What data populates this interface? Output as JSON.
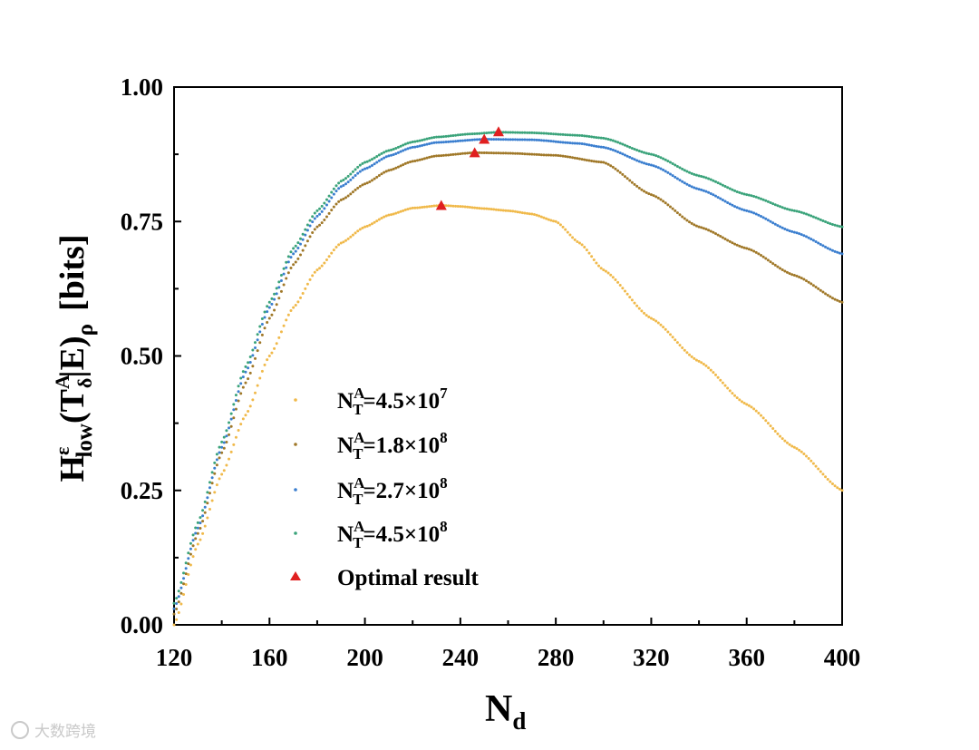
{
  "chart_data": {
    "type": "scatter",
    "title": "",
    "xlabel": {
      "base": "N",
      "sub": "d"
    },
    "ylabel": {
      "pre": "H",
      "sup1": "ε",
      "sub1": "low",
      "mid1": "(T",
      "sup2": "A",
      "sub2": "δ",
      "mid2": "|E)",
      "sub3": "ρ",
      "post": "[bits]"
    },
    "xlim": [
      120,
      400
    ],
    "ylim": [
      0,
      1
    ],
    "x_ticks": [
      "120",
      "160",
      "200",
      "240",
      "280",
      "320",
      "360",
      "400"
    ],
    "y_ticks": [
      "0.00",
      "0.25",
      "0.50",
      "0.75",
      "1.00"
    ],
    "legend_position": "lower-left",
    "series": [
      {
        "name": "N_T^A=4.5×10^7",
        "label_parts": {
          "base": "N",
          "sup": "A",
          "sub": "T",
          "value": "=4.5×10",
          "exp": "7"
        },
        "color": "#f0b94a",
        "points": [
          [
            120,
            0.0
          ],
          [
            130,
            0.15
          ],
          [
            140,
            0.28
          ],
          [
            150,
            0.39
          ],
          [
            160,
            0.5
          ],
          [
            170,
            0.59
          ],
          [
            180,
            0.66
          ],
          [
            190,
            0.71
          ],
          [
            200,
            0.74
          ],
          [
            210,
            0.762
          ],
          [
            220,
            0.775
          ],
          [
            232,
            0.78
          ],
          [
            240,
            0.778
          ],
          [
            250,
            0.774
          ],
          [
            260,
            0.77
          ],
          [
            270,
            0.764
          ],
          [
            280,
            0.75
          ],
          [
            290,
            0.71
          ],
          [
            300,
            0.66
          ],
          [
            320,
            0.57
          ],
          [
            340,
            0.49
          ],
          [
            360,
            0.41
          ],
          [
            380,
            0.33
          ],
          [
            400,
            0.25
          ]
        ]
      },
      {
        "name": "N_T^A=1.8×10^8",
        "label_parts": {
          "base": "N",
          "sup": "A",
          "sub": "T",
          "value": "=1.8×10",
          "exp": "8"
        },
        "color": "#a07828",
        "points": [
          [
            120,
            0.02
          ],
          [
            130,
            0.17
          ],
          [
            140,
            0.32
          ],
          [
            150,
            0.45
          ],
          [
            160,
            0.57
          ],
          [
            170,
            0.67
          ],
          [
            180,
            0.74
          ],
          [
            190,
            0.79
          ],
          [
            200,
            0.82
          ],
          [
            210,
            0.845
          ],
          [
            220,
            0.862
          ],
          [
            230,
            0.872
          ],
          [
            246,
            0.878
          ],
          [
            260,
            0.877
          ],
          [
            280,
            0.873
          ],
          [
            300,
            0.86
          ],
          [
            320,
            0.8
          ],
          [
            340,
            0.74
          ],
          [
            360,
            0.7
          ],
          [
            380,
            0.65
          ],
          [
            400,
            0.6
          ]
        ]
      },
      {
        "name": "N_T^A=2.7×10^8",
        "label_parts": {
          "base": "N",
          "sup": "A",
          "sub": "T",
          "value": "=2.7×10",
          "exp": "8"
        },
        "color": "#3a7ecf",
        "points": [
          [
            120,
            0.03
          ],
          [
            130,
            0.18
          ],
          [
            140,
            0.33
          ],
          [
            150,
            0.47
          ],
          [
            160,
            0.59
          ],
          [
            170,
            0.69
          ],
          [
            180,
            0.76
          ],
          [
            190,
            0.815
          ],
          [
            200,
            0.848
          ],
          [
            210,
            0.872
          ],
          [
            220,
            0.888
          ],
          [
            230,
            0.897
          ],
          [
            250,
            0.903
          ],
          [
            270,
            0.902
          ],
          [
            290,
            0.895
          ],
          [
            300,
            0.888
          ],
          [
            320,
            0.855
          ],
          [
            340,
            0.81
          ],
          [
            360,
            0.77
          ],
          [
            380,
            0.73
          ],
          [
            400,
            0.69
          ]
        ]
      },
      {
        "name": "N_T^A=4.5×10^8",
        "label_parts": {
          "base": "N",
          "sup": "A",
          "sub": "T",
          "value": "=4.5×10",
          "exp": "8"
        },
        "color": "#3aa37a",
        "points": [
          [
            120,
            0.04
          ],
          [
            130,
            0.19
          ],
          [
            140,
            0.34
          ],
          [
            150,
            0.48
          ],
          [
            160,
            0.6
          ],
          [
            170,
            0.7
          ],
          [
            180,
            0.77
          ],
          [
            190,
            0.825
          ],
          [
            200,
            0.86
          ],
          [
            210,
            0.882
          ],
          [
            220,
            0.898
          ],
          [
            230,
            0.907
          ],
          [
            245,
            0.913
          ],
          [
            256,
            0.916
          ],
          [
            270,
            0.915
          ],
          [
            290,
            0.91
          ],
          [
            300,
            0.905
          ],
          [
            320,
            0.875
          ],
          [
            340,
            0.835
          ],
          [
            360,
            0.8
          ],
          [
            380,
            0.77
          ],
          [
            400,
            0.74
          ]
        ]
      }
    ],
    "optimal": {
      "name": "Optimal result",
      "color": "#e02020",
      "points": [
        [
          232,
          0.78
        ],
        [
          246,
          0.878
        ],
        [
          250,
          0.903
        ],
        [
          256,
          0.917
        ]
      ]
    }
  },
  "watermark": "大数跨境"
}
